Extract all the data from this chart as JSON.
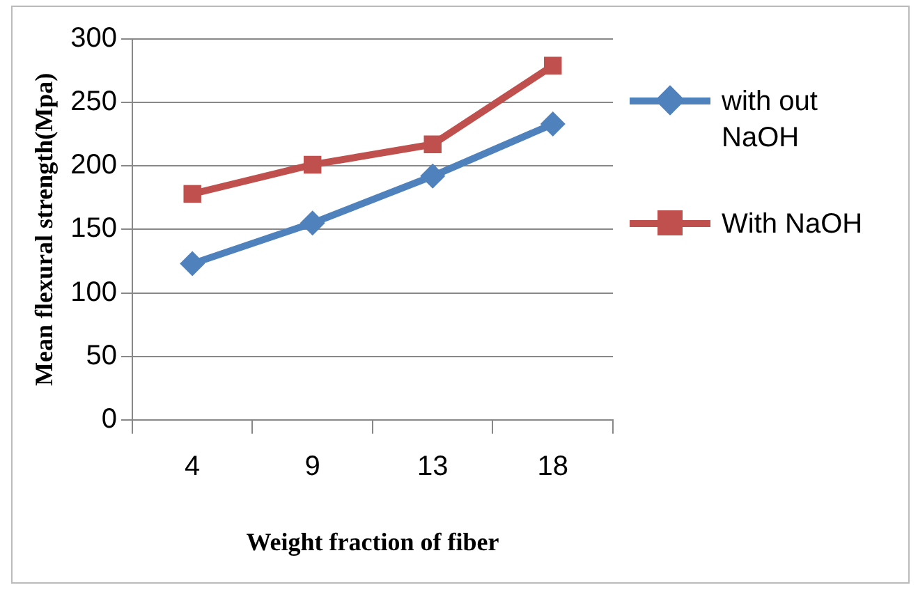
{
  "chart_data": {
    "type": "line",
    "xlabel": "Weight fraction of fiber",
    "ylabel": "Mean flexural strength(Mpa)",
    "categories": [
      "4",
      "9",
      "13",
      "18"
    ],
    "series": [
      {
        "name": "with out NaOH",
        "color": "#4f81bd",
        "values": [
          123,
          155,
          192,
          233
        ],
        "marker": "diamond"
      },
      {
        "name": "With NaOH",
        "color": "#c0504d",
        "values": [
          178,
          201,
          217,
          279
        ],
        "marker": "square"
      }
    ],
    "ylim": [
      0,
      300
    ],
    "yticks": [
      0,
      50,
      100,
      150,
      200,
      250,
      300
    ],
    "grid": "y",
    "legend": "right"
  }
}
